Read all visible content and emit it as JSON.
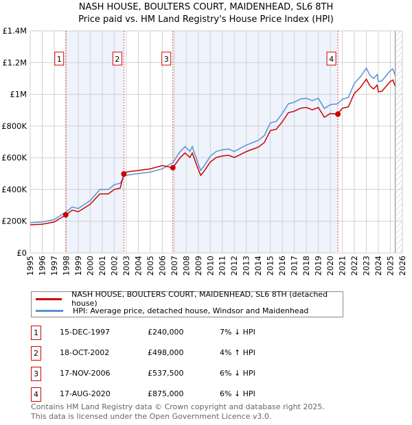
{
  "title": "NASH HOUSE, BOULTERS COURT, MAIDENHEAD, SL6 8TH",
  "subtitle": "Price paid vs. HM Land Registry's House Price Index (HPI)",
  "legend": {
    "property": "NASH HOUSE, BOULTERS COURT, MAIDENHEAD, SL6 8TH (detached house)",
    "hpi": "HPI: Average price, detached house, Windsor and Maidenhead"
  },
  "colors": {
    "property": "#cc0000",
    "hpi": "#5b8fd4",
    "shade": "#eef3fc"
  },
  "sales": [
    {
      "n": "1",
      "date": "15-DEC-1997",
      "price": "£240,000",
      "hpi": "7% ↓ HPI",
      "t": 1997.96,
      "value": 240000
    },
    {
      "n": "2",
      "date": "18-OCT-2002",
      "price": "£498,000",
      "hpi": "4% ↑ HPI",
      "t": 2002.8,
      "value": 498000
    },
    {
      "n": "3",
      "date": "17-NOV-2006",
      "price": "£537,500",
      "hpi": "6% ↓ HPI",
      "t": 2006.88,
      "value": 537500
    },
    {
      "n": "4",
      "date": "17-AUG-2020",
      "price": "£875,000",
      "hpi": "6% ↓ HPI",
      "t": 2020.63,
      "value": 875000
    }
  ],
  "footer": [
    "Contains HM Land Registry data © Crown copyright and database right 2025.",
    "This data is licensed under the Open Government Licence v3.0."
  ],
  "chart_data": {
    "type": "line",
    "xlim": [
      1995,
      2026
    ],
    "ylim": [
      0,
      1400000
    ],
    "x_ticks": [
      "1995",
      "1996",
      "1997",
      "1998",
      "1999",
      "2000",
      "2001",
      "2002",
      "2003",
      "2004",
      "2005",
      "2006",
      "2007",
      "2008",
      "2009",
      "2010",
      "2011",
      "2012",
      "2013",
      "2014",
      "2015",
      "2016",
      "2017",
      "2018",
      "2019",
      "2020",
      "2021",
      "2022",
      "2023",
      "2024",
      "2025",
      "2026"
    ],
    "y_ticks": [
      {
        "v": 0,
        "label": "£0"
      },
      {
        "v": 200000,
        "label": "£200K"
      },
      {
        "v": 400000,
        "label": "£400K"
      },
      {
        "v": 600000,
        "label": "£600K"
      },
      {
        "v": 800000,
        "label": "£800K"
      },
      {
        "v": 1000000,
        "label": "£1M"
      },
      {
        "v": 1200000,
        "label": "£1.2M"
      },
      {
        "v": 1400000,
        "label": "£1.4M"
      }
    ],
    "forecast_from": 2025.4,
    "x": [
      1995,
      1996,
      1997,
      1997.96,
      1998.5,
      1999,
      2000,
      2000.8,
      2001.5,
      2002,
      2002.5,
      2002.8,
      2003,
      2004,
      2005,
      2006,
      2006.88,
      2007.5,
      2007.9,
      2008.3,
      2008.5,
      2009,
      2009.2,
      2009.5,
      2010,
      2010.5,
      2011,
      2011.5,
      2012,
      2012.5,
      2013,
      2014,
      2014.5,
      2015,
      2015.5,
      2016,
      2016.5,
      2017,
      2017.5,
      2018,
      2018.5,
      2019,
      2019.5,
      2020,
      2020.6,
      2021,
      2021.5,
      2022,
      2022.5,
      2023,
      2023.3,
      2023.6,
      2023.9,
      2024,
      2024.3,
      2025,
      2025.2,
      2025.4
    ],
    "series": [
      {
        "name": "HPI",
        "values": [
          190,
          195,
          210,
          258,
          290,
          280,
          330,
          400,
          400,
          430,
          440,
          480,
          490,
          500,
          510,
          530,
          570,
          640,
          670,
          640,
          670,
          560,
          520,
          550,
          610,
          640,
          650,
          655,
          640,
          660,
          680,
          710,
          740,
          820,
          830,
          880,
          940,
          950,
          970,
          975,
          960,
          975,
          910,
          935,
          940,
          970,
          980,
          1070,
          1110,
          1165,
          1120,
          1100,
          1125,
          1080,
          1085,
          1150,
          1160,
          1120
        ],
        "unit": "£K"
      },
      {
        "name": "Property",
        "values": [
          177,
          181,
          195,
          240,
          270,
          260,
          307,
          372,
          372,
          400,
          409,
          498,
          510,
          520,
          530,
          551,
          537,
          602,
          630,
          602,
          630,
          526,
          489,
          517,
          573,
          602,
          611,
          616,
          602,
          620,
          639,
          667,
          696,
          771,
          780,
          827,
          884,
          893,
          912,
          917,
          902,
          917,
          855,
          879,
          875,
          912,
          921,
          1006,
          1043,
          1095,
          1053,
          1034,
          1058,
          1015,
          1020,
          1081,
          1090,
          1053
        ],
        "unit": "£K"
      }
    ]
  }
}
